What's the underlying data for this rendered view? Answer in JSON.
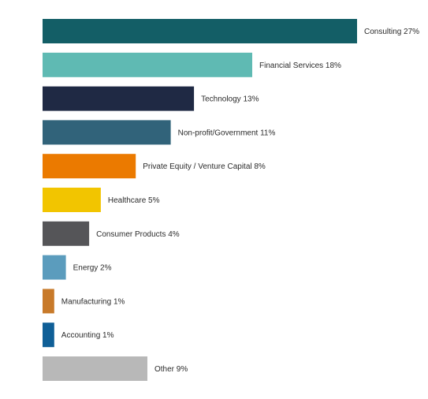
{
  "chart_data": {
    "type": "bar",
    "orientation": "horizontal",
    "title": "",
    "xlabel": "",
    "ylabel": "",
    "grid": false,
    "legend": "none",
    "xlim": [
      0,
      27
    ],
    "categories": [
      "Consulting",
      "Financial Services",
      "Technology",
      "Non-profit/Government",
      "Private Equity / Venture Capital",
      "Healthcare",
      "Consumer Products",
      "Energy",
      "Manufacturing",
      "Accounting",
      "Other"
    ],
    "values": [
      27,
      18,
      13,
      11,
      8,
      5,
      4,
      2,
      1,
      1,
      9
    ],
    "labels": [
      "Consulting 27%",
      "Financial Services 18%",
      "Technology 13%",
      "Non-profit/Government 11%",
      "Private Equity / Venture Capital 8%",
      "Healthcare 5%",
      "Consumer Products 4%",
      "Energy 2%",
      "Manufacturing 1%",
      "Accounting 1%",
      "Other 9%"
    ],
    "colors": [
      "#135e66",
      "#5fbab3",
      "#1f2944",
      "#31637a",
      "#eb7a00",
      "#f2c500",
      "#555558",
      "#5b9cbd",
      "#c87a2a",
      "#0f5f97",
      "#b8b8b8"
    ]
  }
}
